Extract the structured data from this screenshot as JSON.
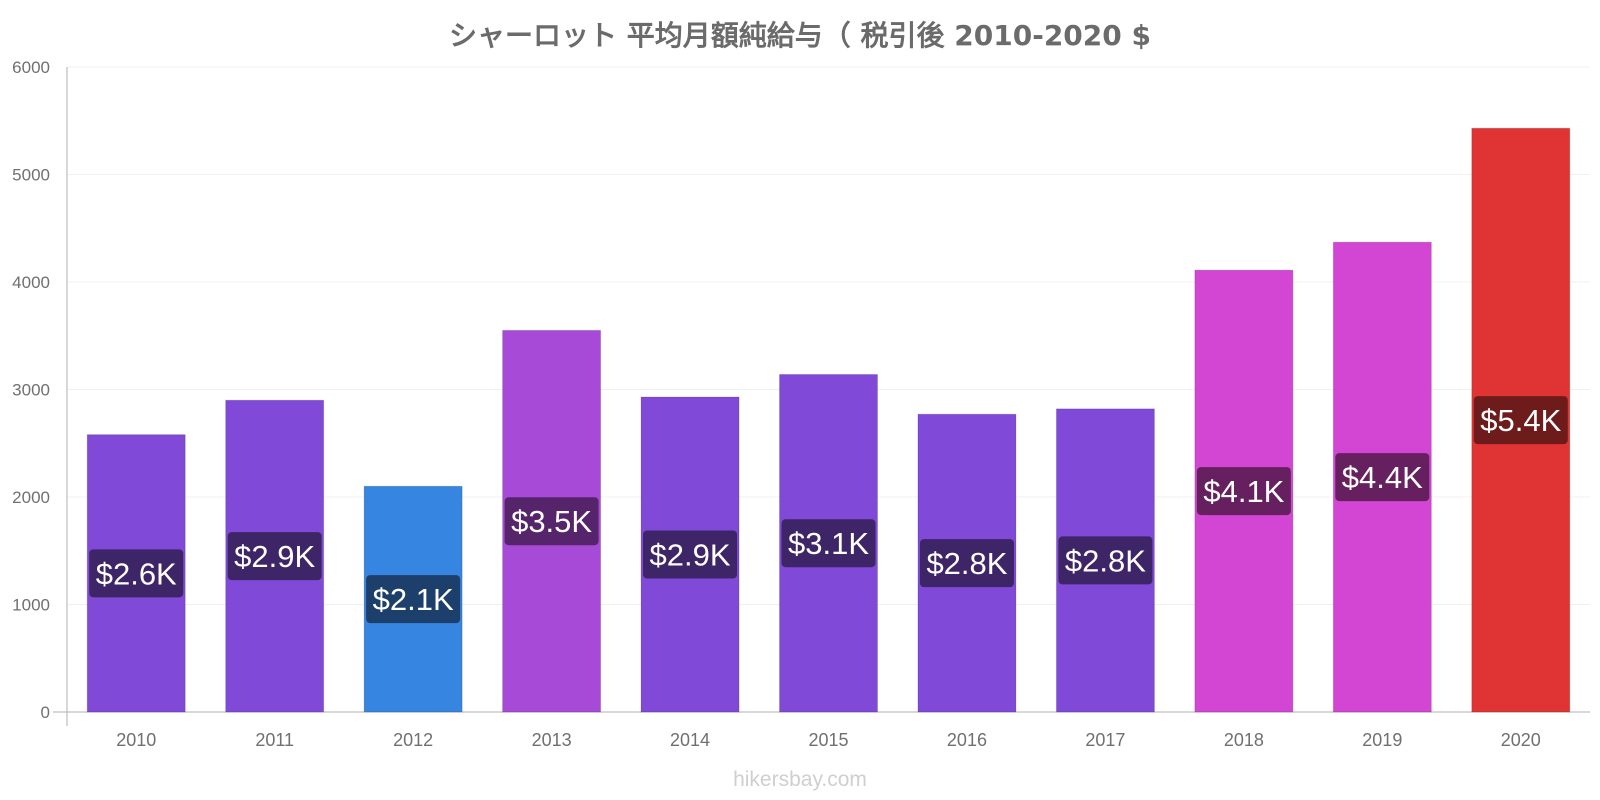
{
  "chart_data": {
    "type": "bar",
    "title": "シャーロット 平均月額純給与（ 税引後 2010-2020 $",
    "categories": [
      "2010",
      "2011",
      "2012",
      "2013",
      "2014",
      "2015",
      "2016",
      "2017",
      "2018",
      "2019",
      "2020"
    ],
    "values": [
      2580,
      2900,
      2100,
      3550,
      2930,
      3140,
      2770,
      2820,
      4110,
      4370,
      5430
    ],
    "data_labels": [
      "$2.6K",
      "$2.9K",
      "$2.1K",
      "$3.5K",
      "$2.9K",
      "$3.1K",
      "$2.8K",
      "$2.8K",
      "$4.1K",
      "$4.4K",
      "$5.4K"
    ],
    "bar_colors": [
      "#8049d8",
      "#8049d8",
      "#3685e0",
      "#a84ad8",
      "#8049d8",
      "#8049d8",
      "#8049d8",
      "#8049d8",
      "#d346d3",
      "#d346d3",
      "#e03434"
    ],
    "label_bg_colors": [
      "#3e2568",
      "#3e2568",
      "#1d3f6b",
      "#56246b",
      "#3e2568",
      "#3e2568",
      "#3e2568",
      "#3e2568",
      "#66205f",
      "#66205f",
      "#6e1b1b"
    ],
    "ylim": [
      0,
      6000
    ],
    "yticks": [
      "0",
      "1000",
      "2000",
      "3000",
      "4000",
      "5000",
      "6000"
    ],
    "grid": true,
    "legend": "none"
  },
  "watermark": "hikersbay.com"
}
